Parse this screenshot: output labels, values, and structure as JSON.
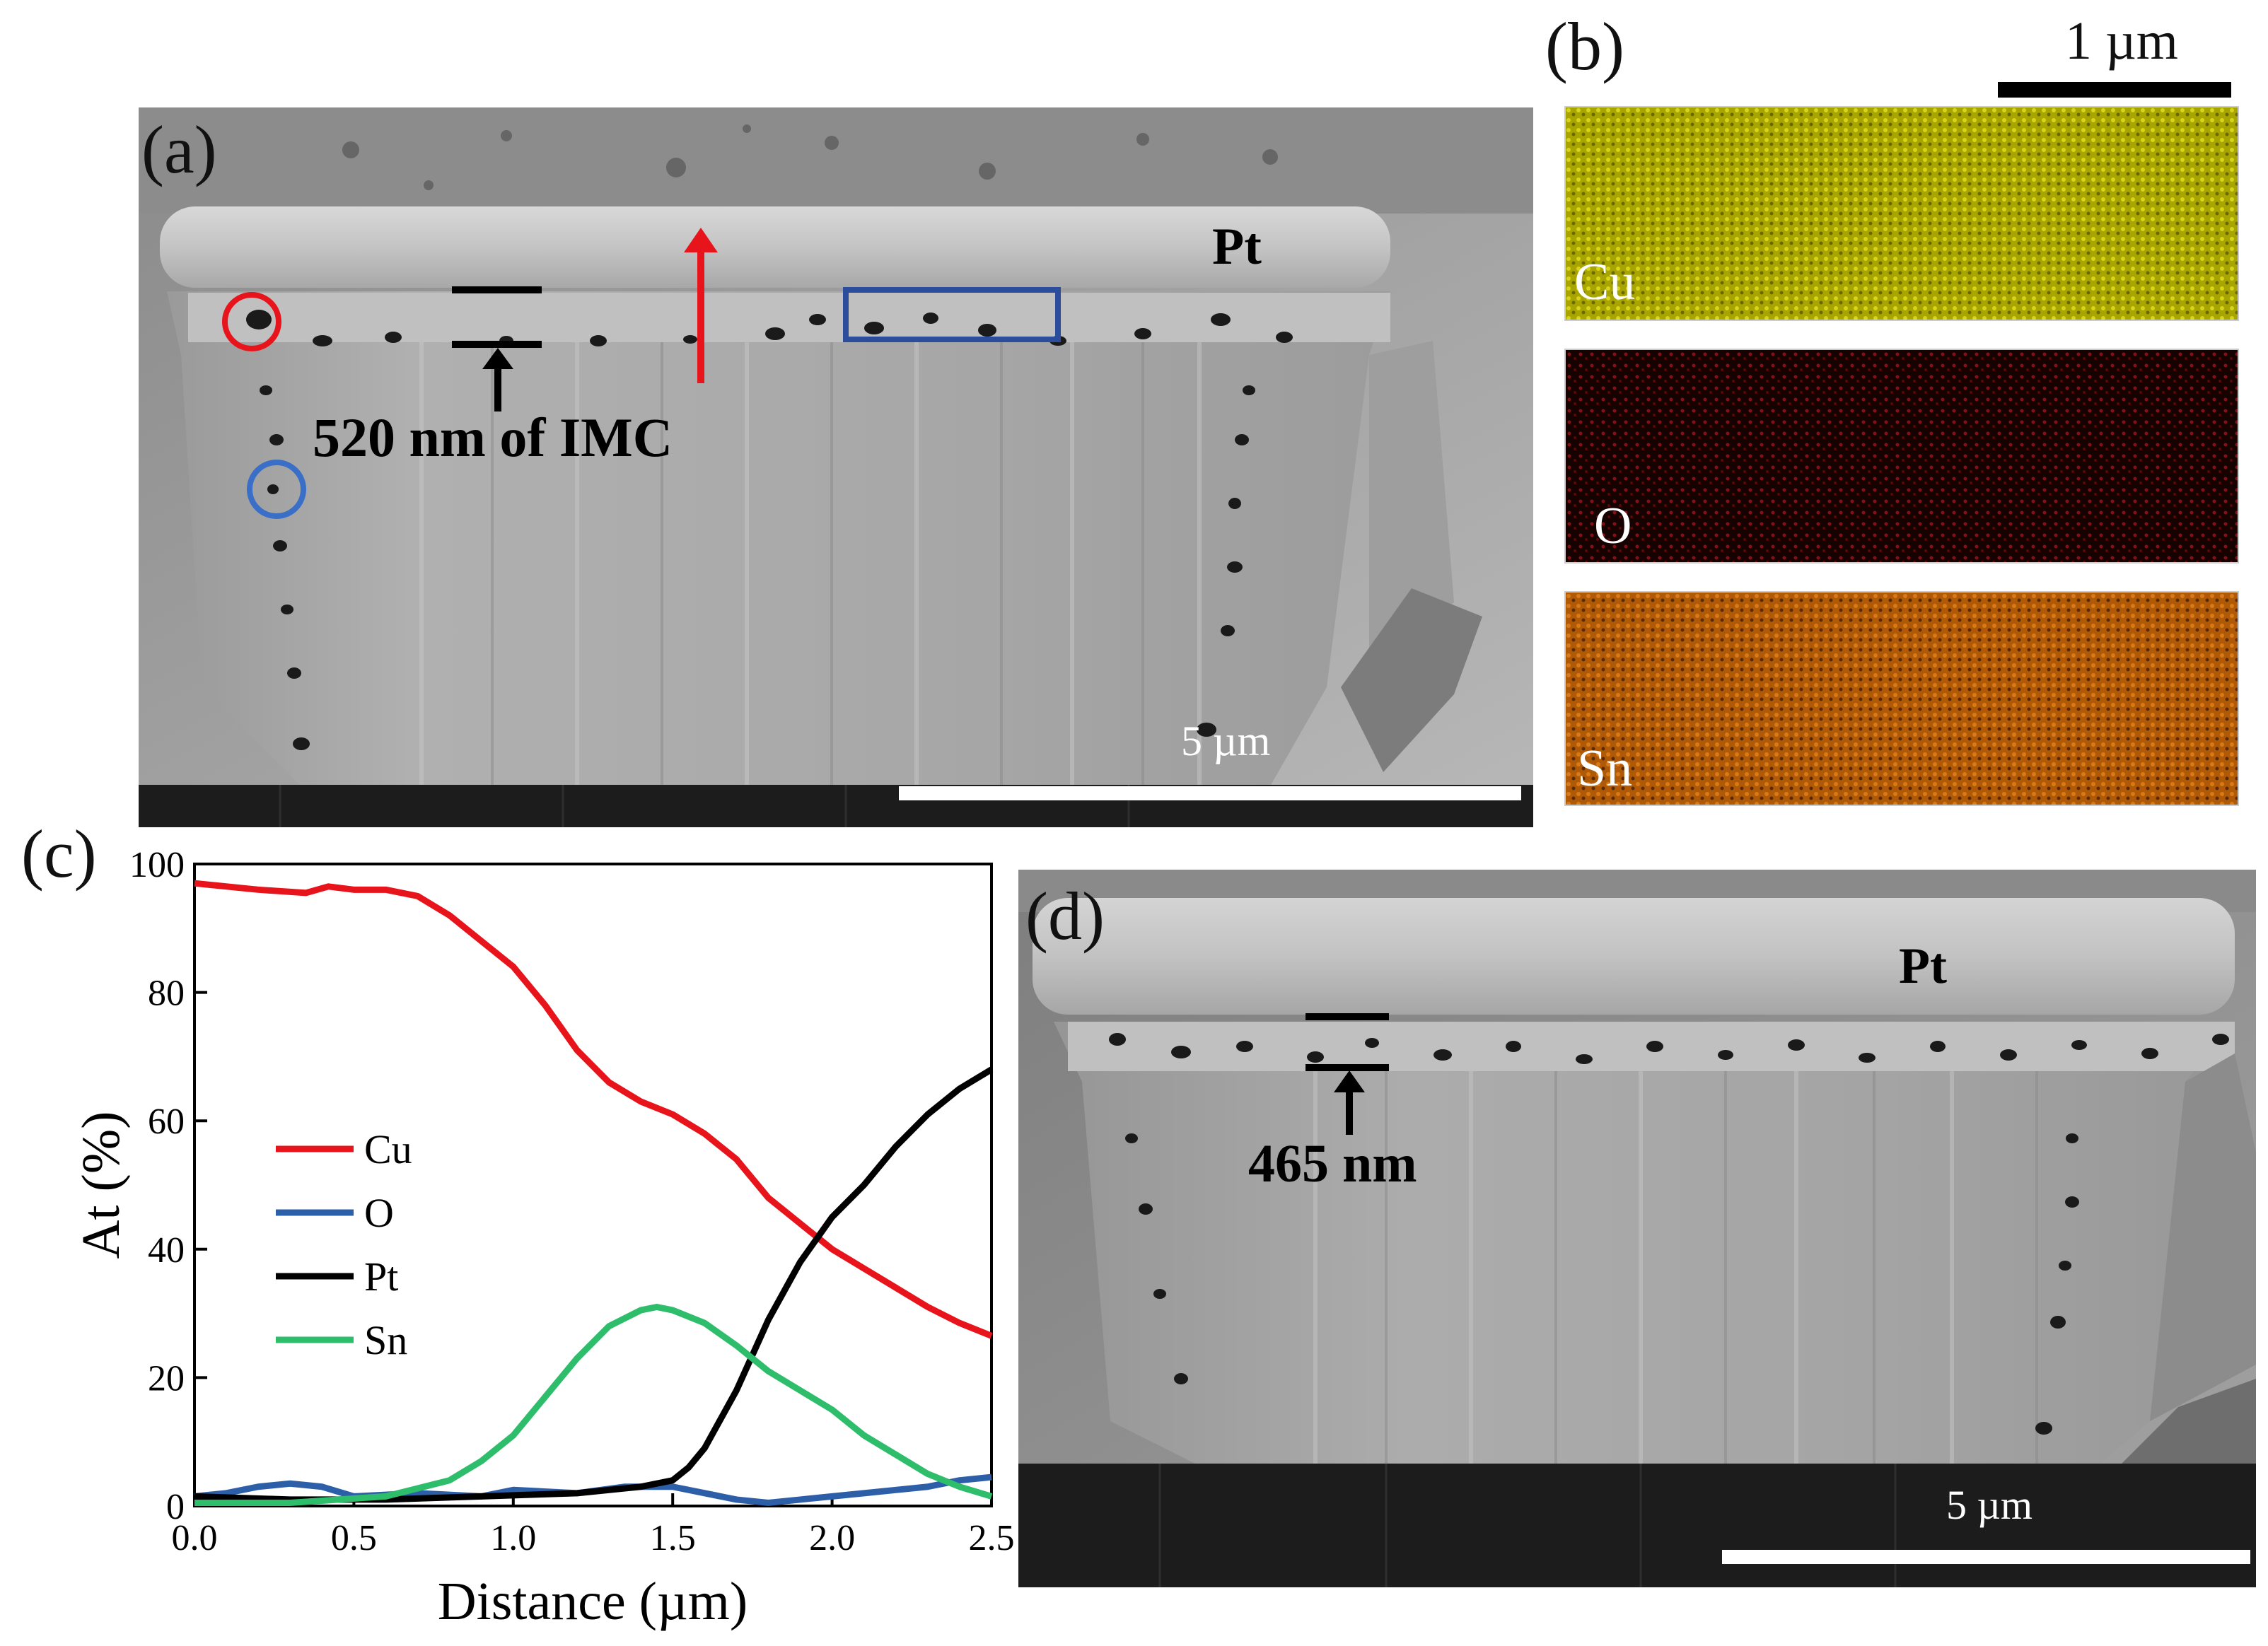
{
  "panels": {
    "a": {
      "label": "(a)",
      "material_label": "Pt",
      "imc_annotation": "520 nm of IMC",
      "scale_bar": "5 µm"
    },
    "b": {
      "label": "(b)",
      "scale_bar": "1 µm",
      "maps": [
        {
          "element": "Cu",
          "color": "#b8b400"
        },
        {
          "element": "O",
          "color": "#5a0808"
        },
        {
          "element": "Sn",
          "color": "#c8620a"
        }
      ]
    },
    "c": {
      "label": "(c)"
    },
    "d": {
      "label": "(d)",
      "material_label": "Pt",
      "imc_annotation": "465 nm",
      "scale_bar": "5 µm"
    }
  },
  "chart_data": {
    "type": "line",
    "xlabel": "Distance (µm)",
    "ylabel": "At (%)",
    "xlim": [
      0,
      2.5
    ],
    "ylim": [
      0,
      100
    ],
    "xticks": [
      "0.0",
      "0.5",
      "1.0",
      "1.5",
      "2.0",
      "2.5"
    ],
    "yticks": [
      "0",
      "20",
      "40",
      "60",
      "80",
      "100"
    ],
    "legend_position": "center-left",
    "series": [
      {
        "name": "Cu",
        "color": "#e8141b",
        "x": [
          0,
          0.2,
          0.35,
          0.42,
          0.5,
          0.6,
          0.7,
          0.8,
          0.9,
          1.0,
          1.1,
          1.2,
          1.3,
          1.4,
          1.5,
          1.6,
          1.7,
          1.8,
          1.9,
          2.0,
          2.1,
          2.2,
          2.3,
          2.4,
          2.5
        ],
        "y": [
          97,
          96,
          95.5,
          96.5,
          96,
          96,
          95,
          92,
          88,
          84,
          78,
          71,
          66,
          63,
          61,
          58,
          54,
          48,
          44,
          40,
          37,
          34,
          31,
          28.5,
          26.5
        ]
      },
      {
        "name": "O",
        "color": "#2d5fa8",
        "x": [
          0,
          0.1,
          0.2,
          0.3,
          0.4,
          0.5,
          0.7,
          0.9,
          1.0,
          1.2,
          1.35,
          1.5,
          1.6,
          1.7,
          1.8,
          1.9,
          2.0,
          2.1,
          2.2,
          2.3,
          2.4,
          2.5
        ],
        "y": [
          1.5,
          2,
          3,
          3.5,
          3,
          1.5,
          2,
          1.5,
          2.5,
          2,
          3,
          3,
          2,
          1,
          0.5,
          1,
          1.5,
          2,
          2.5,
          3,
          4,
          4.5
        ]
      },
      {
        "name": "Pt",
        "color": "#000000",
        "x": [
          0,
          0.3,
          0.6,
          0.9,
          1.2,
          1.4,
          1.5,
          1.55,
          1.6,
          1.7,
          1.8,
          1.9,
          2.0,
          2.1,
          2.2,
          2.3,
          2.4,
          2.5
        ],
        "y": [
          1.5,
          1,
          1,
          1.5,
          2,
          3,
          4,
          6,
          9,
          18,
          29,
          38,
          45,
          50,
          56,
          61,
          65,
          68
        ]
      },
      {
        "name": "Sn",
        "color": "#2ebd6b",
        "x": [
          0,
          0.3,
          0.6,
          0.8,
          0.9,
          1.0,
          1.1,
          1.2,
          1.3,
          1.4,
          1.45,
          1.5,
          1.6,
          1.7,
          1.8,
          1.9,
          2.0,
          2.1,
          2.2,
          2.3,
          2.4,
          2.5
        ],
        "y": [
          0.5,
          0.5,
          1.5,
          4,
          7,
          11,
          17,
          23,
          28,
          30.5,
          31,
          30.5,
          28.5,
          25,
          21,
          18,
          15,
          11,
          8,
          5,
          3,
          1.5
        ]
      }
    ]
  }
}
